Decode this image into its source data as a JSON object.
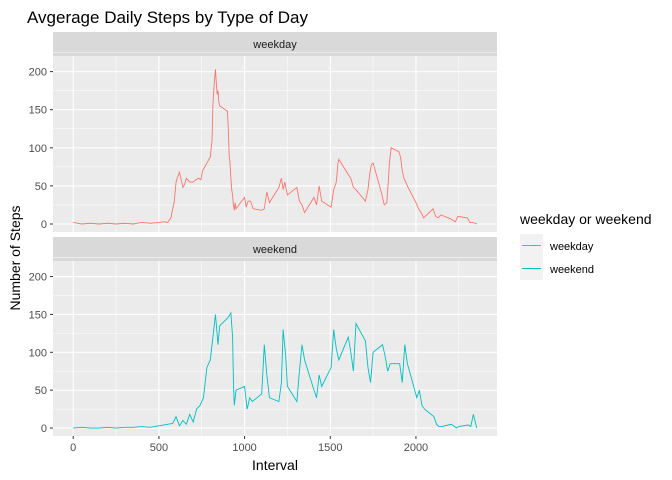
{
  "chart_data": {
    "type": "line",
    "title": "Avgerage Daily Steps by Type of Day",
    "xlabel": "Interval",
    "ylabel": "Number of Steps",
    "xlim": [
      0,
      2355
    ],
    "ylim": [
      0,
      210
    ],
    "x_ticks": [
      0,
      500,
      1000,
      1500,
      2000
    ],
    "y_ticks": [
      0,
      50,
      100,
      150,
      200
    ],
    "grid": true,
    "facet_by": "type of day",
    "legend_title": "weekday or weekend",
    "legend_position": "right",
    "series": [
      {
        "name": "weekday",
        "facet": "weekday",
        "color": "#F8766D",
        "x": [
          0,
          50,
          100,
          150,
          200,
          250,
          300,
          350,
          400,
          450,
          500,
          530,
          550,
          570,
          590,
          600,
          610,
          620,
          630,
          640,
          650,
          660,
          680,
          700,
          715,
          730,
          745,
          755,
          800,
          810,
          815,
          820,
          825,
          830,
          835,
          840,
          845,
          850,
          855,
          900,
          905,
          910,
          915,
          920,
          925,
          930,
          935,
          940,
          945,
          950,
          1000,
          1010,
          1020,
          1035,
          1050,
          1100,
          1115,
          1130,
          1145,
          1200,
          1215,
          1225,
          1235,
          1250,
          1305,
          1320,
          1335,
          1350,
          1405,
          1420,
          1435,
          1450,
          1505,
          1520,
          1535,
          1545,
          1550,
          1605,
          1620,
          1635,
          1650,
          1705,
          1720,
          1730,
          1740,
          1750,
          1800,
          1815,
          1830,
          1840,
          1845,
          1850,
          1855,
          1900,
          1910,
          1920,
          1930,
          1940,
          1950,
          2000,
          2015,
          2030,
          2045,
          2100,
          2115,
          2130,
          2145,
          2200,
          2215,
          2230,
          2245,
          2300,
          2315,
          2330,
          2345,
          2355
        ],
        "values": [
          2,
          0,
          1,
          0,
          1,
          0,
          1,
          0,
          2,
          1,
          2,
          3,
          2,
          8,
          30,
          55,
          62,
          68,
          58,
          48,
          52,
          60,
          55,
          55,
          58,
          60,
          58,
          70,
          88,
          110,
          155,
          175,
          190,
          203,
          185,
          170,
          175,
          160,
          155,
          148,
          125,
          90,
          80,
          60,
          45,
          38,
          25,
          18,
          28,
          20,
          35,
          22,
          30,
          30,
          20,
          18,
          20,
          42,
          28,
          48,
          60,
          45,
          55,
          38,
          48,
          30,
          25,
          15,
          35,
          25,
          50,
          30,
          22,
          45,
          55,
          80,
          85,
          65,
          60,
          48,
          45,
          30,
          45,
          65,
          78,
          80,
          40,
          25,
          28,
          60,
          80,
          90,
          100,
          95,
          88,
          70,
          60,
          55,
          50,
          28,
          20,
          15,
          8,
          20,
          10,
          8,
          12,
          7,
          5,
          3,
          10,
          8,
          2,
          2,
          1,
          0
        ],
        "scaled_x_note": ""
      },
      {
        "name": "weekend",
        "facet": "weekend",
        "color": "#00BFC4",
        "x": [
          0,
          50,
          100,
          150,
          200,
          250,
          300,
          350,
          400,
          450,
          500,
          550,
          580,
          600,
          620,
          640,
          660,
          680,
          700,
          720,
          740,
          760,
          780,
          800,
          815,
          830,
          845,
          855,
          900,
          910,
          920,
          930,
          935,
          940,
          950,
          1000,
          1015,
          1030,
          1045,
          1100,
          1115,
          1130,
          1145,
          1200,
          1215,
          1225,
          1240,
          1250,
          1305,
          1320,
          1335,
          1350,
          1405,
          1420,
          1435,
          1450,
          1505,
          1520,
          1535,
          1550,
          1605,
          1620,
          1635,
          1650,
          1705,
          1720,
          1735,
          1750,
          1805,
          1820,
          1835,
          1850,
          1905,
          1920,
          1935,
          1950,
          2005,
          2020,
          2035,
          2050,
          2105,
          2120,
          2135,
          2150,
          2205,
          2220,
          2235,
          2250,
          2305,
          2320,
          2335,
          2355
        ],
        "values": [
          0,
          1,
          0,
          0,
          1,
          0,
          1,
          1,
          2,
          1,
          3,
          5,
          6,
          15,
          3,
          10,
          5,
          18,
          8,
          25,
          30,
          40,
          80,
          90,
          120,
          150,
          110,
          135,
          145,
          148,
          152,
          120,
          60,
          30,
          50,
          55,
          25,
          40,
          35,
          45,
          110,
          70,
          40,
          35,
          60,
          130,
          95,
          55,
          35,
          75,
          110,
          90,
          50,
          40,
          70,
          55,
          80,
          130,
          105,
          90,
          120,
          100,
          75,
          138,
          115,
          80,
          60,
          100,
          110,
          95,
          75,
          85,
          85,
          60,
          110,
          85,
          40,
          50,
          30,
          25,
          15,
          5,
          2,
          2,
          5,
          3,
          0,
          2,
          4,
          2,
          18,
          0
        ],
        "scaled_x_note": ""
      }
    ]
  },
  "facets": {
    "weekday": {
      "label": "weekday"
    },
    "weekend": {
      "label": "weekend"
    }
  },
  "colors": {
    "panel_bg": "#EBEBEB",
    "strip_bg": "#D9D9D9",
    "grid_major": "#FFFFFF",
    "weekday": "#F8766D",
    "weekend": "#00BFC4"
  }
}
